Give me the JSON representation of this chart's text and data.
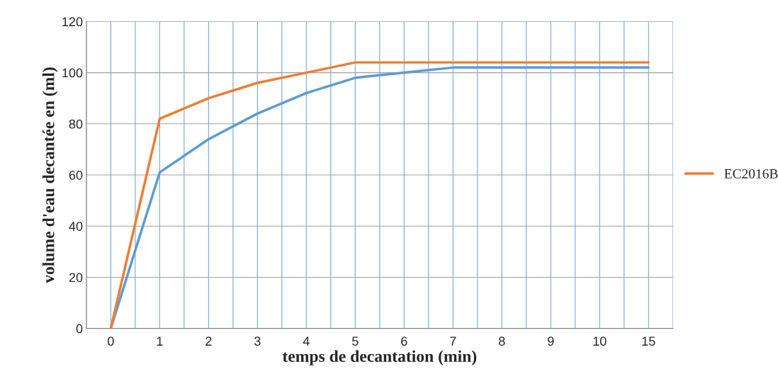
{
  "chart_data": {
    "type": "line",
    "xlabel": "temps de decantation (min)",
    "ylabel": "volume d'eau decantée en (ml)",
    "categories": [
      "0",
      "1",
      "2",
      "3",
      "4",
      "5",
      "6",
      "7",
      "8",
      "9",
      "10",
      "15"
    ],
    "series": [
      {
        "color": "#5b9bd5",
        "values": [
          0,
          61,
          74,
          84,
          92,
          98,
          100,
          102,
          102,
          102,
          102,
          102
        ]
      },
      {
        "name": "EC2016B",
        "color": "#ed7d31",
        "values": [
          0,
          82,
          90,
          96,
          100,
          104,
          104,
          104,
          104,
          104,
          104,
          104
        ]
      }
    ],
    "ylim": [
      0,
      120
    ],
    "yticks": [
      0,
      20,
      40,
      60,
      80,
      100,
      120
    ],
    "grid": true,
    "legend": "right",
    "line_style": "solid",
    "marker": "none"
  }
}
